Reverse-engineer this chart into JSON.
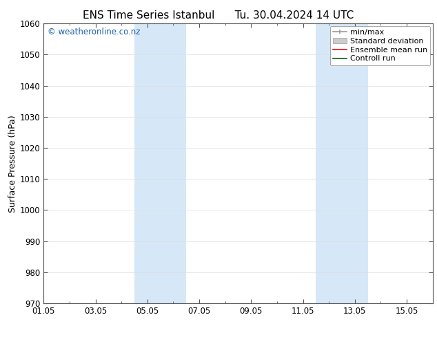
{
  "title_left": "ENS Time Series Istanbul",
  "title_right": "Tu. 30.04.2024 14 UTC",
  "ylabel": "Surface Pressure (hPa)",
  "ylim": [
    970,
    1060
  ],
  "yticks": [
    970,
    980,
    990,
    1000,
    1010,
    1020,
    1030,
    1040,
    1050,
    1060
  ],
  "xtick_labels": [
    "01.05",
    "03.05",
    "05.05",
    "07.05",
    "09.05",
    "11.05",
    "13.05",
    "15.05"
  ],
  "xtick_positions": [
    0,
    2,
    4,
    6,
    8,
    10,
    12,
    14
  ],
  "xlim": [
    0,
    15
  ],
  "shaded_bands": [
    {
      "x_start": 3.5,
      "x_end": 5.5
    },
    {
      "x_start": 10.5,
      "x_end": 12.5
    }
  ],
  "shade_color": "#d6e8f7",
  "watermark_text": "© weatheronline.co.nz",
  "watermark_color": "#1a5fa8",
  "bg_color": "#ffffff",
  "plot_bg_color": "#ffffff",
  "legend_entries": [
    "min/max",
    "Standard deviation",
    "Ensemble mean run",
    "Controll run"
  ],
  "minmax_color": "#999999",
  "std_dev_color": "#cccccc",
  "ensemble_color": "#ff0000",
  "control_color": "#006400",
  "font_family": "DejaVu Sans",
  "title_fontsize": 11,
  "label_fontsize": 9,
  "tick_fontsize": 8.5,
  "watermark_fontsize": 8.5,
  "legend_fontsize": 8
}
